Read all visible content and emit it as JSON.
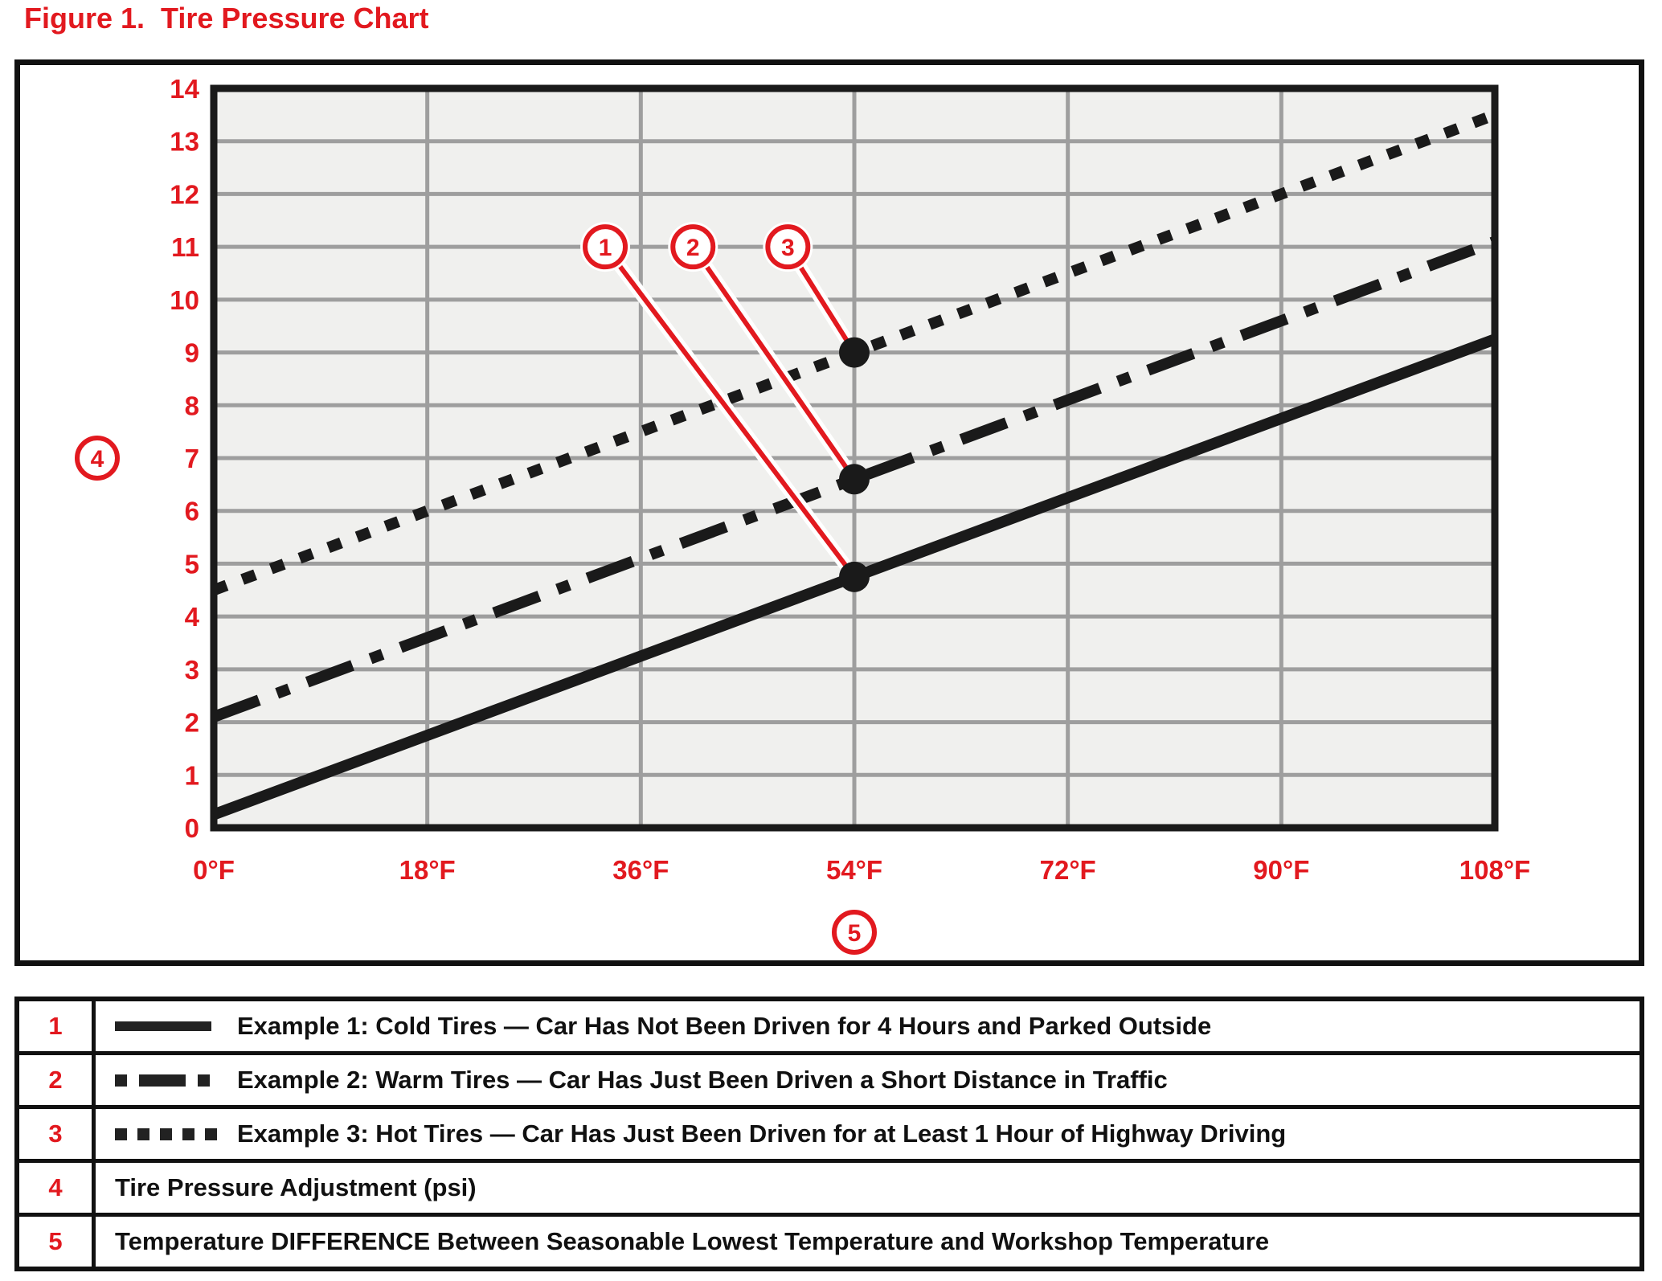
{
  "title": "Figure 1.  Tire Pressure Chart",
  "colors": {
    "accent_red": "#e2191f",
    "line_black": "#1a1a1a",
    "grid_gray": "#9e9e9e",
    "plot_bg": "#f0f0ee"
  },
  "chart_data": {
    "type": "line",
    "title": "Tire Pressure Chart",
    "xlabel": "Temperature DIFFERENCE Between Seasonable Lowest Temperature and Workshop Temperature",
    "ylabel": "Tire Pressure Adjustment (psi)",
    "grid": true,
    "x_axis": {
      "range": [
        0,
        108
      ],
      "ticks": [
        {
          "v": 0,
          "label": "0°F"
        },
        {
          "v": 18,
          "label": "18°F"
        },
        {
          "v": 36,
          "label": "36°F"
        },
        {
          "v": 54,
          "label": "54°F"
        },
        {
          "v": 72,
          "label": "72°F"
        },
        {
          "v": 90,
          "label": "90°F"
        },
        {
          "v": 108,
          "label": "108°F"
        }
      ],
      "callout_label": "5"
    },
    "y_axis": {
      "range": [
        0,
        14
      ],
      "ticks": [
        {
          "v": 0,
          "label": "0"
        },
        {
          "v": 1,
          "label": "1"
        },
        {
          "v": 2,
          "label": "2"
        },
        {
          "v": 3,
          "label": "3"
        },
        {
          "v": 4,
          "label": "4"
        },
        {
          "v": 5,
          "label": "5"
        },
        {
          "v": 6,
          "label": "6"
        },
        {
          "v": 7,
          "label": "7"
        },
        {
          "v": 8,
          "label": "8"
        },
        {
          "v": 9,
          "label": "9"
        },
        {
          "v": 10,
          "label": "10"
        },
        {
          "v": 11,
          "label": "11"
        },
        {
          "v": 12,
          "label": "12"
        },
        {
          "v": 13,
          "label": "13"
        },
        {
          "v": 14,
          "label": "14"
        }
      ],
      "callout_label": "4"
    },
    "series": [
      {
        "name": "Example 1: Cold Tires",
        "style": "solid",
        "points": [
          [
            0,
            0.25
          ],
          [
            108,
            9.25
          ]
        ]
      },
      {
        "name": "Example 2: Warm Tires",
        "style": "dash-dot",
        "points": [
          [
            0,
            2.1
          ],
          [
            108,
            11.1
          ]
        ]
      },
      {
        "name": "Example 3: Hot Tires",
        "style": "dotted",
        "points": [
          [
            0,
            4.5
          ],
          [
            108,
            13.5
          ]
        ]
      }
    ],
    "markers": [
      {
        "x": 54,
        "y": 4.75
      },
      {
        "x": 54,
        "y": 6.6
      },
      {
        "x": 54,
        "y": 9.0
      }
    ],
    "callouts": [
      {
        "label": "1",
        "x": 33.0,
        "y": 11.0,
        "marker": 0
      },
      {
        "label": "2",
        "x": 40.4,
        "y": 11.0,
        "marker": 1
      },
      {
        "label": "3",
        "x": 48.4,
        "y": 11.0,
        "marker": 2
      },
      {
        "label": "4",
        "axis": "y"
      },
      {
        "label": "5",
        "axis": "x"
      }
    ]
  },
  "legend_table": {
    "rows": [
      {
        "num": "1",
        "swatch": "solid",
        "text": "Example 1:  Cold Tires — Car Has Not Been Driven for 4 Hours and Parked Outside"
      },
      {
        "num": "2",
        "swatch": "dash-dot",
        "text": "Example 2:  Warm Tires — Car Has Just Been Driven a Short Distance in Traffic"
      },
      {
        "num": "3",
        "swatch": "dotted",
        "text": "Example 3:  Hot Tires — Car Has Just Been Driven for at Least 1 Hour of Highway Driving"
      },
      {
        "num": "4",
        "swatch": "none",
        "text": "Tire Pressure Adjustment (psi)"
      },
      {
        "num": "5",
        "swatch": "none",
        "text": "Temperature DIFFERENCE Between Seasonable Lowest Temperature and Workshop Temperature"
      }
    ]
  }
}
